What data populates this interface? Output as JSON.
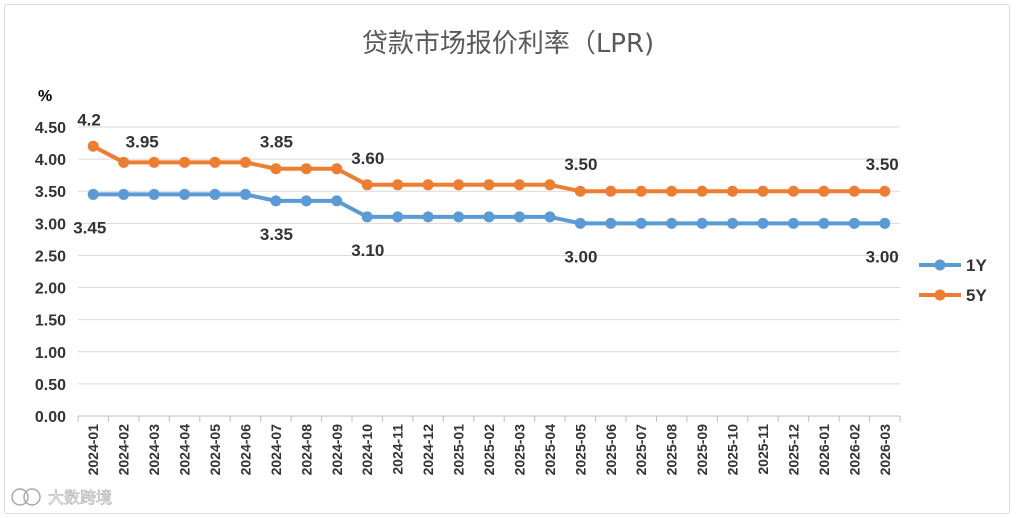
{
  "chart_data": {
    "type": "line",
    "title": "贷款市场报价利率（LPR)",
    "ylabel": "%",
    "xlabel": "",
    "ylim": [
      0,
      4.5
    ],
    "yticks": [
      "0.00",
      "0.50",
      "1.00",
      "1.50",
      "2.00",
      "2.50",
      "3.00",
      "3.50",
      "4.00",
      "4.50"
    ],
    "grid": true,
    "legend_position": "right",
    "categories": [
      "2024-01",
      "2024-02",
      "2024-03",
      "2024-04",
      "2024-05",
      "2024-06",
      "2024-07",
      "2024-08",
      "2024-09",
      "2024-10",
      "2024-11",
      "2024-12",
      "2025-01",
      "2025-02",
      "2025-03",
      "2025-04",
      "2025-05",
      "2025-06",
      "2025-07",
      "2025-08",
      "2025-09",
      "2025-10",
      "2025-11",
      "2025-12",
      "2026-01",
      "2026-02",
      "2026-03"
    ],
    "series": [
      {
        "name": "1Y",
        "color": "#5b9bd5",
        "values": [
          3.45,
          3.45,
          3.45,
          3.45,
          3.45,
          3.45,
          3.35,
          3.35,
          3.35,
          3.1,
          3.1,
          3.1,
          3.1,
          3.1,
          3.1,
          3.1,
          3.0,
          3.0,
          3.0,
          3.0,
          3.0,
          3.0,
          3.0,
          3.0,
          3.0,
          3.0,
          3.0
        ],
        "annotations": [
          {
            "index": 0,
            "text": "3.45"
          },
          {
            "index": 6,
            "text": "3.35"
          },
          {
            "index": 9,
            "text": "3.10"
          },
          {
            "index": 16,
            "text": "3.00"
          },
          {
            "index": 26,
            "text": "3.00"
          }
        ]
      },
      {
        "name": "5Y",
        "color": "#ed7d31",
        "values": [
          4.2,
          3.95,
          3.95,
          3.95,
          3.95,
          3.95,
          3.85,
          3.85,
          3.85,
          3.6,
          3.6,
          3.6,
          3.6,
          3.6,
          3.6,
          3.6,
          3.5,
          3.5,
          3.5,
          3.5,
          3.5,
          3.5,
          3.5,
          3.5,
          3.5,
          3.5,
          3.5
        ],
        "annotations": [
          {
            "index": 0,
            "text": "4.2"
          },
          {
            "index": 1,
            "text": "3.95"
          },
          {
            "index": 6,
            "text": "3.85"
          },
          {
            "index": 9,
            "text": "3.60"
          },
          {
            "index": 16,
            "text": "3.50"
          },
          {
            "index": 26,
            "text": "3.50"
          }
        ]
      }
    ]
  },
  "watermark": {
    "text": "大数跨境"
  }
}
